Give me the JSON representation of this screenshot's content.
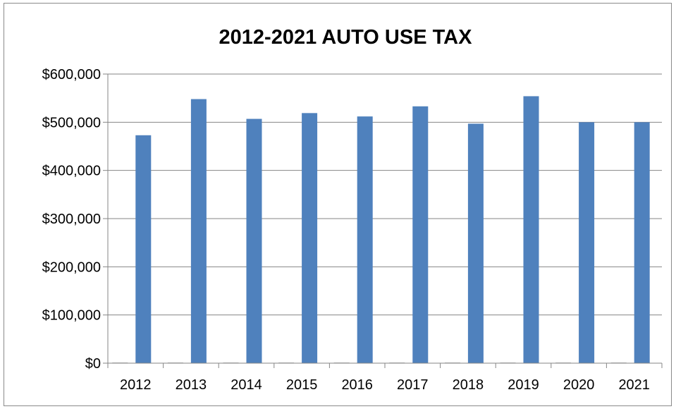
{
  "chart_data": {
    "type": "bar",
    "title": "2012-2021 AUTO USE TAX",
    "xlabel": "",
    "ylabel": "",
    "categories": [
      "2012",
      "2013",
      "2014",
      "2015",
      "2016",
      "2017",
      "2018",
      "2019",
      "2020",
      "2021"
    ],
    "series": [
      {
        "values": [
          473000,
          548000,
          507000,
          519000,
          512000,
          533000,
          497000,
          554000,
          500000,
          500000
        ]
      },
      {
        "values": [
          0,
          0,
          0,
          0,
          0,
          0,
          0,
          0,
          0,
          0
        ]
      }
    ],
    "ylim": [
      0,
      600000
    ],
    "yticks": [
      0,
      100000,
      200000,
      300000,
      400000,
      500000,
      600000
    ],
    "ytick_labels": [
      "$0",
      "$100,000",
      "$200,000",
      "$300,000",
      "$400,000",
      "$500,000",
      "$600,000"
    ],
    "grid": true,
    "legend": "none",
    "colors": {
      "bar": "#4f81bd",
      "gridline": "#868686",
      "axis": "#868686",
      "frame": "#8a8a8a"
    }
  }
}
